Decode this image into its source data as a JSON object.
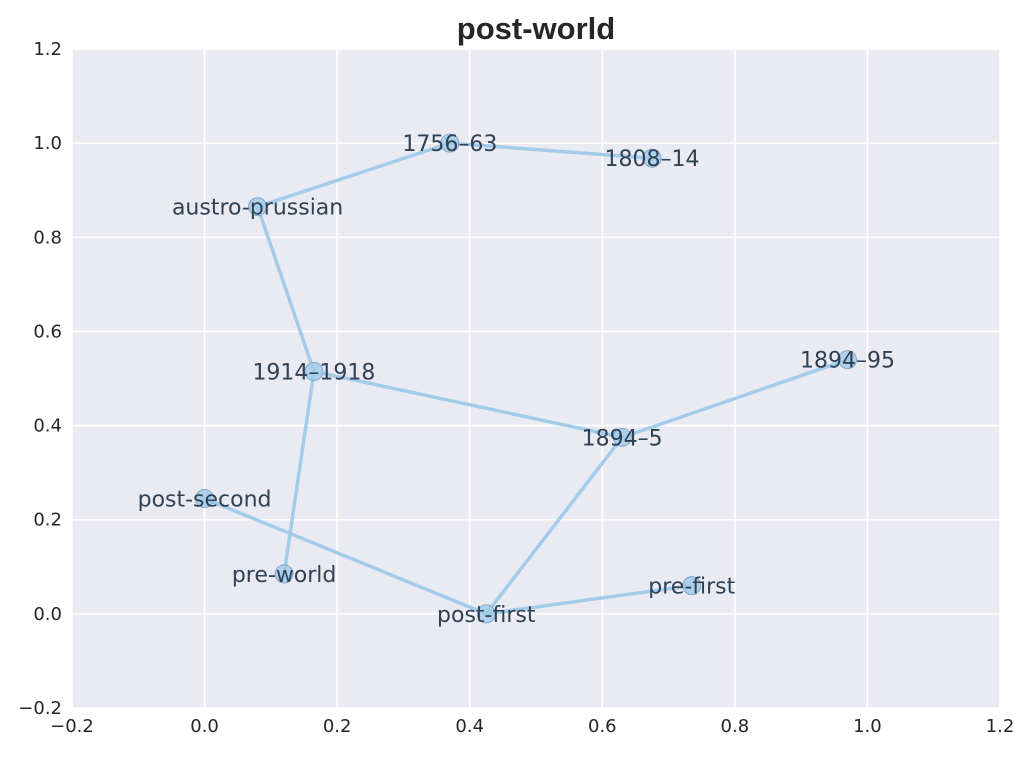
{
  "chart_data": {
    "type": "scatter",
    "title": "post-world",
    "xlabel": "",
    "ylabel": "",
    "xlim": [
      -0.2,
      1.2
    ],
    "ylim": [
      -0.2,
      1.2
    ],
    "xticks": [
      -0.2,
      0.0,
      0.2,
      0.4,
      0.6,
      0.8,
      1.0,
      1.2
    ],
    "yticks": [
      -0.2,
      0.0,
      0.2,
      0.4,
      0.6,
      0.8,
      1.0,
      1.2
    ],
    "xtick_labels": [
      "−0.2",
      "0.0",
      "0.2",
      "0.4",
      "0.6",
      "0.8",
      "1.0",
      "1.2"
    ],
    "ytick_labels": [
      "−0.2",
      "0.0",
      "0.2",
      "0.4",
      "0.6",
      "0.8",
      "1.0",
      "1.2"
    ],
    "grid": true,
    "points": [
      {
        "label": "1756–63",
        "x": 0.37,
        "y": 1.0
      },
      {
        "label": "1808–14",
        "x": 0.675,
        "y": 0.968
      },
      {
        "label": "austro-prussian",
        "x": 0.08,
        "y": 0.865
      },
      {
        "label": "1894–95",
        "x": 0.97,
        "y": 0.54
      },
      {
        "label": "1914–1918",
        "x": 0.165,
        "y": 0.515
      },
      {
        "label": "1894–5",
        "x": 0.63,
        "y": 0.375
      },
      {
        "label": "post-second",
        "x": 0.0,
        "y": 0.245
      },
      {
        "label": "pre-world",
        "x": 0.12,
        "y": 0.085
      },
      {
        "label": "pre-first",
        "x": 0.735,
        "y": 0.06
      },
      {
        "label": "post-first",
        "x": 0.425,
        "y": 0.0
      }
    ],
    "edges": [
      [
        "1808–14",
        "1756–63"
      ],
      [
        "1756–63",
        "austro-prussian"
      ],
      [
        "austro-prussian",
        "1914–1918"
      ],
      [
        "1914–1918",
        "pre-world"
      ],
      [
        "1914–1918",
        "1894–5"
      ],
      [
        "1894–5",
        "1894–95"
      ],
      [
        "1894–5",
        "post-first"
      ],
      [
        "post-first",
        "post-second"
      ],
      [
        "post-first",
        "pre-first"
      ]
    ],
    "colors": {
      "background": "#eaeaf2",
      "grid": "#ffffff",
      "line": "#a3cbea",
      "marker": "#a3cbea",
      "marker_edge": "#7fa8cc",
      "text": "#262626"
    }
  }
}
